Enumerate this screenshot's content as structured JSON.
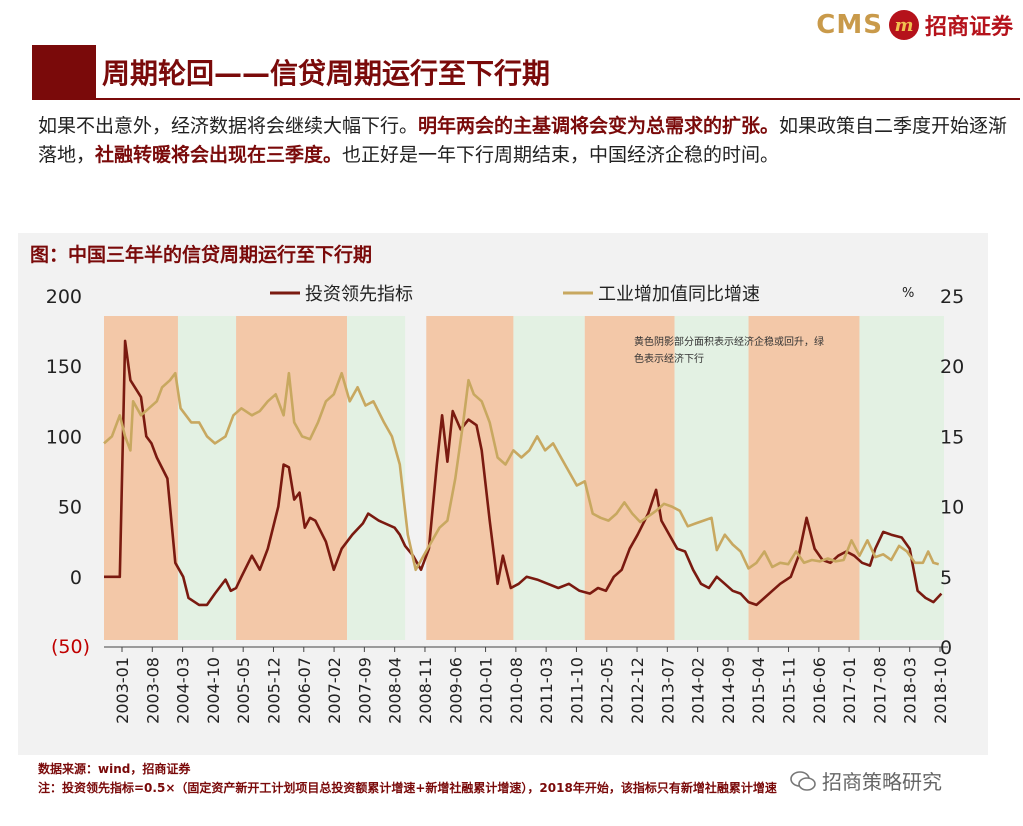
{
  "brand": {
    "en": "CMS",
    "badge": "m",
    "cn": "招商证券"
  },
  "slide_title": "周期轮回——信贷周期运行至下行期",
  "intro": {
    "p1": "如果不出意外，经济数据将会继续大幅下行。",
    "p2": "明年两会的主基调将会变为总需求的扩张。",
    "p3": "如果政策自二季度开始逐渐落地，",
    "p4": "社融转暖将会出现在三季度。",
    "p5": "也正好是一年下行周期结束，中国经济企稳的时间。"
  },
  "figure_title": "图：中国三年半的信贷周期运行至下行期",
  "footer": {
    "source": "数据来源：wind，招商证券",
    "note": "注：投资领先指标=0.5×（固定资产新开工计划项目总投资额累计增速+新增社融累计增速），2018年开始，该指标只有新增社融累计增速"
  },
  "watermark": "招商策略研究",
  "colors": {
    "invest": "#7a1a10",
    "industry": "#c8a860",
    "red_shade": "#f3c8a8",
    "green_shade": "#e3f1e3"
  },
  "chart_data": {
    "type": "line",
    "annotation": "黄色阴影部分面积表示经济企稳或回升，绿色表示经济下行",
    "left_axis": {
      "ticks": [
        200,
        150,
        100,
        50,
        0
      ],
      "neg_label": "(50)",
      "range": [
        -50,
        200
      ]
    },
    "right_axis": {
      "ticks": [
        25,
        20,
        15,
        10,
        5,
        0
      ],
      "unit": "%",
      "range": [
        0,
        25
      ]
    },
    "x_labels": [
      "2003-01",
      "2003-08",
      "2004-03",
      "2004-10",
      "2005-05",
      "2005-12",
      "2006-07",
      "2007-02",
      "2007-09",
      "2008-04",
      "2008-11",
      "2009-06",
      "2010-01",
      "2010-08",
      "2011-03",
      "2011-10",
      "2012-05",
      "2012-12",
      "2013-07",
      "2014-02",
      "2014-09",
      "2015-04",
      "2015-11",
      "2016-06",
      "2017-01",
      "2017-08",
      "2018-03",
      "2018-10"
    ],
    "time_range": [
      2003.0,
      2018.9
    ],
    "shaded_periods": [
      {
        "kind": "red",
        "start": 2003.0,
        "end": 2004.4
      },
      {
        "kind": "green",
        "start": 2004.4,
        "end": 2005.5
      },
      {
        "kind": "red",
        "start": 2005.5,
        "end": 2007.6
      },
      {
        "kind": "green",
        "start": 2007.6,
        "end": 2008.7
      },
      {
        "kind": "red",
        "start": 2009.1,
        "end": 2010.75
      },
      {
        "kind": "green",
        "start": 2010.75,
        "end": 2012.1
      },
      {
        "kind": "red",
        "start": 2012.1,
        "end": 2013.8
      },
      {
        "kind": "green",
        "start": 2013.8,
        "end": 2015.2
      },
      {
        "kind": "red",
        "start": 2015.2,
        "end": 2017.3
      },
      {
        "kind": "green",
        "start": 2017.3,
        "end": 2018.9
      }
    ],
    "series": [
      {
        "name": "投资领先指标",
        "axis": "left",
        "points": [
          [
            2003.0,
            0
          ],
          [
            2003.3,
            0
          ],
          [
            2003.4,
            168
          ],
          [
            2003.5,
            140
          ],
          [
            2003.7,
            128
          ],
          [
            2003.8,
            100
          ],
          [
            2003.9,
            95
          ],
          [
            2004.0,
            85
          ],
          [
            2004.2,
            70
          ],
          [
            2004.35,
            10
          ],
          [
            2004.5,
            0
          ],
          [
            2004.6,
            -15
          ],
          [
            2004.8,
            -20
          ],
          [
            2004.95,
            -20
          ],
          [
            2005.1,
            -12
          ],
          [
            2005.3,
            -2
          ],
          [
            2005.4,
            -10
          ],
          [
            2005.5,
            -8
          ],
          [
            2005.6,
            0
          ],
          [
            2005.8,
            15
          ],
          [
            2005.95,
            5
          ],
          [
            2006.1,
            20
          ],
          [
            2006.3,
            50
          ],
          [
            2006.4,
            80
          ],
          [
            2006.5,
            78
          ],
          [
            2006.6,
            55
          ],
          [
            2006.7,
            60
          ],
          [
            2006.8,
            35
          ],
          [
            2006.9,
            42
          ],
          [
            2007.0,
            40
          ],
          [
            2007.2,
            25
          ],
          [
            2007.35,
            5
          ],
          [
            2007.5,
            20
          ],
          [
            2007.7,
            30
          ],
          [
            2007.9,
            38
          ],
          [
            2008.0,
            45
          ],
          [
            2008.2,
            40
          ],
          [
            2008.5,
            35
          ],
          [
            2008.6,
            30
          ],
          [
            2008.7,
            22
          ],
          [
            2008.85,
            15
          ],
          [
            2009.0,
            5
          ],
          [
            2009.15,
            20
          ],
          [
            2009.3,
            80
          ],
          [
            2009.4,
            115
          ],
          [
            2009.5,
            82
          ],
          [
            2009.6,
            118
          ],
          [
            2009.75,
            105
          ],
          [
            2009.9,
            112
          ],
          [
            2010.05,
            108
          ],
          [
            2010.15,
            90
          ],
          [
            2010.3,
            40
          ],
          [
            2010.45,
            -5
          ],
          [
            2010.55,
            15
          ],
          [
            2010.7,
            -8
          ],
          [
            2010.85,
            -5
          ],
          [
            2011.0,
            0
          ],
          [
            2011.2,
            -2
          ],
          [
            2011.4,
            -5
          ],
          [
            2011.6,
            -8
          ],
          [
            2011.8,
            -5
          ],
          [
            2012.0,
            -10
          ],
          [
            2012.2,
            -12
          ],
          [
            2012.35,
            -8
          ],
          [
            2012.5,
            -10
          ],
          [
            2012.65,
            0
          ],
          [
            2012.8,
            5
          ],
          [
            2012.95,
            20
          ],
          [
            2013.1,
            30
          ],
          [
            2013.3,
            45
          ],
          [
            2013.45,
            62
          ],
          [
            2013.55,
            40
          ],
          [
            2013.7,
            30
          ],
          [
            2013.85,
            20
          ],
          [
            2014.0,
            18
          ],
          [
            2014.15,
            5
          ],
          [
            2014.3,
            -5
          ],
          [
            2014.45,
            -8
          ],
          [
            2014.6,
            0
          ],
          [
            2014.75,
            -5
          ],
          [
            2014.9,
            -10
          ],
          [
            2015.05,
            -12
          ],
          [
            2015.2,
            -18
          ],
          [
            2015.35,
            -20
          ],
          [
            2015.5,
            -15
          ],
          [
            2015.65,
            -10
          ],
          [
            2015.8,
            -5
          ],
          [
            2016.0,
            0
          ],
          [
            2016.15,
            15
          ],
          [
            2016.3,
            42
          ],
          [
            2016.45,
            20
          ],
          [
            2016.6,
            12
          ],
          [
            2016.75,
            10
          ],
          [
            2016.9,
            15
          ],
          [
            2017.05,
            18
          ],
          [
            2017.2,
            15
          ],
          [
            2017.35,
            10
          ],
          [
            2017.5,
            8
          ],
          [
            2017.6,
            20
          ],
          [
            2017.75,
            32
          ],
          [
            2017.9,
            30
          ],
          [
            2018.1,
            28
          ],
          [
            2018.25,
            20
          ],
          [
            2018.4,
            -10
          ],
          [
            2018.55,
            -15
          ],
          [
            2018.7,
            -18
          ],
          [
            2018.85,
            -12
          ]
        ]
      },
      {
        "name": "工业增加值同比增速",
        "axis": "right",
        "points": [
          [
            2003.0,
            14.5
          ],
          [
            2003.15,
            15
          ],
          [
            2003.3,
            16.5
          ],
          [
            2003.4,
            15
          ],
          [
            2003.5,
            14
          ],
          [
            2003.55,
            17.5
          ],
          [
            2003.7,
            16.5
          ],
          [
            2003.85,
            17
          ],
          [
            2004.0,
            17.5
          ],
          [
            2004.1,
            18.5
          ],
          [
            2004.25,
            19
          ],
          [
            2004.35,
            19.5
          ],
          [
            2004.45,
            17
          ],
          [
            2004.55,
            16.5
          ],
          [
            2004.65,
            16
          ],
          [
            2004.8,
            16
          ],
          [
            2004.95,
            15
          ],
          [
            2005.1,
            14.5
          ],
          [
            2005.3,
            15
          ],
          [
            2005.45,
            16.5
          ],
          [
            2005.6,
            17
          ],
          [
            2005.8,
            16.5
          ],
          [
            2005.95,
            16.8
          ],
          [
            2006.1,
            17.5
          ],
          [
            2006.25,
            18
          ],
          [
            2006.4,
            16.5
          ],
          [
            2006.5,
            19.5
          ],
          [
            2006.6,
            16
          ],
          [
            2006.75,
            15
          ],
          [
            2006.9,
            14.8
          ],
          [
            2007.05,
            16
          ],
          [
            2007.2,
            17.5
          ],
          [
            2007.35,
            18
          ],
          [
            2007.5,
            19.5
          ],
          [
            2007.65,
            17.5
          ],
          [
            2007.8,
            18.5
          ],
          [
            2007.95,
            17.2
          ],
          [
            2008.1,
            17.5
          ],
          [
            2008.3,
            16
          ],
          [
            2008.45,
            15
          ],
          [
            2008.6,
            13
          ],
          [
            2008.75,
            8
          ],
          [
            2008.9,
            5.5
          ],
          [
            2009.05,
            6.5
          ],
          [
            2009.2,
            7.5
          ],
          [
            2009.35,
            8.5
          ],
          [
            2009.5,
            9
          ],
          [
            2009.65,
            12
          ],
          [
            2009.8,
            16
          ],
          [
            2009.9,
            19
          ],
          [
            2010.0,
            18
          ],
          [
            2010.15,
            17.5
          ],
          [
            2010.3,
            16
          ],
          [
            2010.45,
            13.5
          ],
          [
            2010.6,
            13
          ],
          [
            2010.75,
            14
          ],
          [
            2010.9,
            13.5
          ],
          [
            2011.05,
            14
          ],
          [
            2011.2,
            15
          ],
          [
            2011.35,
            14
          ],
          [
            2011.5,
            14.5
          ],
          [
            2011.65,
            13.5
          ],
          [
            2011.8,
            12.5
          ],
          [
            2011.95,
            11.5
          ],
          [
            2012.1,
            11.8
          ],
          [
            2012.25,
            9.5
          ],
          [
            2012.4,
            9.2
          ],
          [
            2012.55,
            9
          ],
          [
            2012.7,
            9.5
          ],
          [
            2012.85,
            10.3
          ],
          [
            2013.0,
            9.5
          ],
          [
            2013.15,
            8.9
          ],
          [
            2013.3,
            9.3
          ],
          [
            2013.45,
            9.7
          ],
          [
            2013.6,
            10.2
          ],
          [
            2013.75,
            10
          ],
          [
            2013.9,
            9.7
          ],
          [
            2014.05,
            8.6
          ],
          [
            2014.2,
            8.8
          ],
          [
            2014.35,
            9
          ],
          [
            2014.5,
            9.2
          ],
          [
            2014.6,
            6.9
          ],
          [
            2014.75,
            8
          ],
          [
            2014.9,
            7.3
          ],
          [
            2015.05,
            6.8
          ],
          [
            2015.2,
            5.6
          ],
          [
            2015.35,
            6
          ],
          [
            2015.5,
            6.8
          ],
          [
            2015.65,
            5.7
          ],
          [
            2015.8,
            6
          ],
          [
            2015.95,
            5.9
          ],
          [
            2016.1,
            6.8
          ],
          [
            2016.25,
            6
          ],
          [
            2016.4,
            6.2
          ],
          [
            2016.55,
            6.1
          ],
          [
            2016.7,
            6.3
          ],
          [
            2016.85,
            6.1
          ],
          [
            2017.0,
            6.2
          ],
          [
            2017.15,
            7.6
          ],
          [
            2017.3,
            6.5
          ],
          [
            2017.45,
            7.6
          ],
          [
            2017.6,
            6.4
          ],
          [
            2017.75,
            6.6
          ],
          [
            2017.9,
            6.2
          ],
          [
            2018.05,
            7.2
          ],
          [
            2018.2,
            6.8
          ],
          [
            2018.35,
            6
          ],
          [
            2018.5,
            6
          ],
          [
            2018.6,
            6.8
          ],
          [
            2018.7,
            6
          ],
          [
            2018.8,
            5.9
          ]
        ]
      }
    ]
  }
}
